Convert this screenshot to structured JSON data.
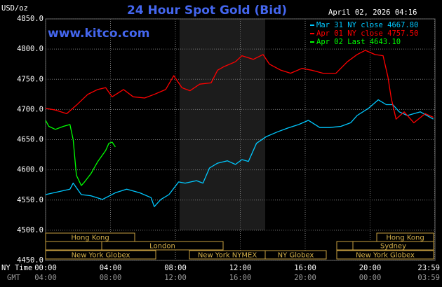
{
  "chart_data": {
    "type": "line",
    "title": "24 Hour Spot Gold (Bid)",
    "y_label": "USD/oz",
    "timestamp": "April 02, 2026 04:16",
    "source": "www.kitco.com",
    "xlim": [
      0,
      24
    ],
    "ylim": [
      4450,
      4850
    ],
    "yticks": [
      {
        "value": 4450,
        "label": "4450.0"
      },
      {
        "value": 4500,
        "label": "4500.0"
      },
      {
        "value": 4550,
        "label": "4550.0"
      },
      {
        "value": 4600,
        "label": "4600.0"
      },
      {
        "value": 4650,
        "label": "4650.0"
      },
      {
        "value": 4700,
        "label": "4700.0"
      },
      {
        "value": 4750,
        "label": "4750.0"
      },
      {
        "value": 4800,
        "label": "4800.0"
      },
      {
        "value": 4850,
        "label": "4850.0"
      }
    ],
    "x_row_labels": [
      "NY Time",
      "GMT"
    ],
    "xticks": [
      {
        "value": 0,
        "label": "00:00"
      },
      {
        "value": 4,
        "label": "04:00"
      },
      {
        "value": 8,
        "label": "08:00"
      },
      {
        "value": 12,
        "label": "12:00"
      },
      {
        "value": 16,
        "label": "16:00"
      },
      {
        "value": 20,
        "label": "20:00"
      },
      {
        "value": 23.98,
        "label": "23:59"
      }
    ],
    "gmt_labels": [
      "04:00",
      "08:00",
      "12:00",
      "16:00",
      "20:00",
      "00:00",
      "03:59"
    ],
    "sessions": [
      "Hong Kong",
      "London",
      "New York Globex",
      "New York NYMEX",
      "NY Globex",
      "Hong Kong",
      "Sydney",
      "New York Globex"
    ],
    "grid": true,
    "series": [
      {
        "name": "Mar 31 NY close 4667.80",
        "color": "#00c8ff",
        "x": [
          0,
          1.5,
          1.7,
          2.2,
          2.8,
          3.5,
          4.3,
          5.0,
          5.8,
          6.5,
          6.7,
          7.1,
          7.6,
          8.2,
          8.6,
          9.3,
          9.7,
          10.1,
          10.6,
          11.2,
          11.7,
          12.1,
          12.5,
          13.0,
          13.6,
          14.3,
          14.9,
          15.6,
          16.2,
          16.9,
          17.5,
          18.2,
          18.8,
          19.2,
          19.9,
          20.5,
          21.0,
          21.4,
          21.8,
          22.3,
          23.1,
          23.9
        ],
        "values": [
          4559,
          4568,
          4578,
          4559,
          4557,
          4551,
          4562,
          4568,
          4562,
          4554,
          4539,
          4551,
          4559,
          4580,
          4578,
          4582,
          4578,
          4603,
          4611,
          4615,
          4609,
          4617,
          4614,
          4644,
          4655,
          4663,
          4669,
          4675,
          4682,
          4670,
          4670,
          4672,
          4678,
          4690,
          4702,
          4716,
          4708,
          4708,
          4696,
          4690,
          4696,
          4684
        ]
      },
      {
        "name": "Apr 01 NY close 4757.50",
        "color": "#ff0000",
        "x": [
          0,
          0.6,
          1.3,
          1.9,
          2.6,
          3.2,
          3.7,
          4.1,
          4.8,
          5.4,
          6.1,
          6.7,
          7.4,
          7.9,
          8.4,
          8.9,
          9.5,
          10.2,
          10.6,
          11.0,
          11.7,
          12.1,
          12.8,
          13.4,
          13.8,
          14.5,
          15.1,
          15.8,
          16.4,
          17.1,
          17.9,
          18.6,
          19.2,
          19.7,
          20.3,
          20.8,
          21.1,
          21.3,
          21.6,
          22.1,
          22.7,
          23.4,
          23.9
        ],
        "values": [
          4702,
          4699,
          4693,
          4707,
          4725,
          4733,
          4736,
          4721,
          4733,
          4721,
          4719,
          4725,
          4733,
          4756,
          4736,
          4731,
          4742,
          4744,
          4765,
          4771,
          4779,
          4789,
          4783,
          4791,
          4775,
          4765,
          4760,
          4768,
          4765,
          4760,
          4760,
          4779,
          4791,
          4798,
          4791,
          4789,
          4754,
          4719,
          4684,
          4696,
          4678,
          4693,
          4687
        ]
      },
      {
        "name": "Apr 02 Last 4643.10",
        "color": "#00ff00",
        "x": [
          0,
          0.2,
          0.6,
          1.1,
          1.5,
          1.7,
          1.9,
          2.2,
          2.4,
          2.8,
          3.2,
          3.7,
          3.9,
          4.1,
          4.3
        ],
        "values": [
          4682,
          4672,
          4667,
          4672,
          4675,
          4650,
          4591,
          4574,
          4580,
          4594,
          4613,
          4632,
          4644,
          4646,
          4638
        ]
      }
    ]
  }
}
